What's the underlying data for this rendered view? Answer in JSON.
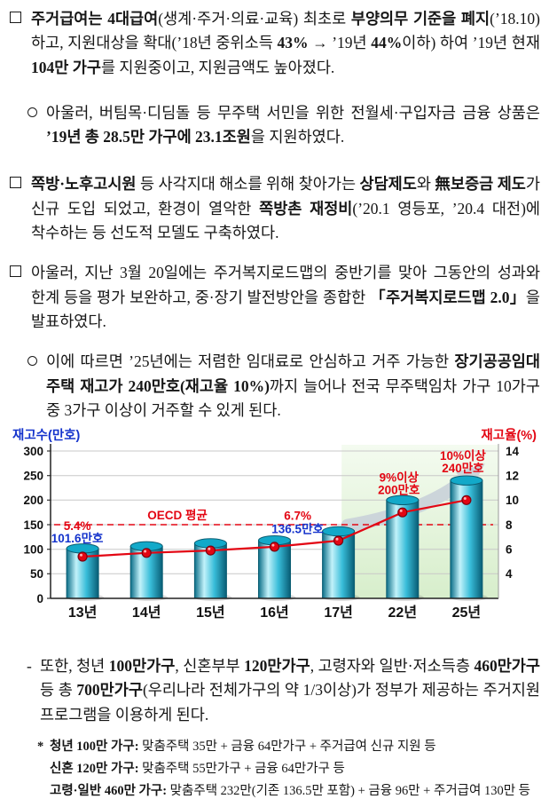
{
  "document": {
    "paragraphs": {
      "p0": {
        "runs": [
          {
            "t": "주거급여는",
            "b": true
          },
          {
            "t": " ",
            "b": false
          },
          {
            "t": "4대급여",
            "b": true
          },
          {
            "t": "(생계·주거·의료·교육) 최초로 ",
            "b": false
          },
          {
            "t": "부양의무 기준을 폐지",
            "b": true
          },
          {
            "t": "(’18.10)하고, 지원대상을 확대(’18년 중위소득 ",
            "b": false
          },
          {
            "t": "43%",
            "b": true
          },
          {
            "t": " → ’19년 ",
            "b": false
          },
          {
            "t": "44%",
            "b": true
          },
          {
            "t": "이하) 하여 ’19년 현재 ",
            "b": false
          },
          {
            "t": "104만 가구",
            "b": true
          },
          {
            "t": "를 지원중이고, 지원금액도 높아졌다.",
            "b": false
          }
        ]
      },
      "p1": {
        "runs": [
          {
            "t": "아울러, 버팀목·디딤돌 등 무주택 서민을 위한 전월세·구입자금 금융 상품은 ",
            "b": false
          },
          {
            "t": "’19년 총 28.5만 가구에 23.1조원",
            "b": true
          },
          {
            "t": "을 지원하였다.",
            "b": false
          }
        ]
      },
      "p2": {
        "runs": [
          {
            "t": "쪽방·노후고시원",
            "b": true
          },
          {
            "t": " 등 사각지대 해소를 위해 찾아가는 ",
            "b": false
          },
          {
            "t": "상담제도",
            "b": true
          },
          {
            "t": "와 ",
            "b": false
          },
          {
            "t": "無보증금 제도",
            "b": true
          },
          {
            "t": "가 신규 도입 되었고, 환경이 열악한 ",
            "b": false
          },
          {
            "t": "쪽방촌 재정비",
            "b": true
          },
          {
            "t": "(’20.1 영등포, ’20.4 대전)에 착수하는 등 선도적 모델도 구축하였다.",
            "b": false
          }
        ]
      },
      "p3": {
        "runs": [
          {
            "t": "아울러, 지난 3월 20일에는 주거복지로드맵의 중반기를 맞아 그동안의 성과와 한계 등을 평가 보완하고, 중·장기 발전방안을 종합한 ",
            "b": false
          },
          {
            "t": "「주거복지로드맵 2.0」",
            "b": true
          },
          {
            "t": "을 발표하였다.",
            "b": false
          }
        ]
      },
      "p4": {
        "runs": [
          {
            "t": "이에 따르면 ’25년에는 저렴한 임대료로 안심하고 거주 가능한 ",
            "b": false
          },
          {
            "t": "장기공공임대 주택 재고가 240만호(재고율 10%)",
            "b": true
          },
          {
            "t": "까지 늘어나 전국 무주택임차 가구 10가구 중 3가구 이상이 거주할 수 있게 된다.",
            "b": false
          }
        ]
      },
      "p5": {
        "bullet": "-",
        "runs": [
          {
            "t": "또한, 청년 ",
            "b": false
          },
          {
            "t": "100만가구",
            "b": true
          },
          {
            "t": ", 신혼부부 ",
            "b": false
          },
          {
            "t": "120만가구",
            "b": true
          },
          {
            "t": ", 고령자와 일반·저소득층 ",
            "b": false
          },
          {
            "t": "460만가구",
            "b": true
          },
          {
            "t": " 등 총 ",
            "b": false
          },
          {
            "t": "700만가구",
            "b": true
          },
          {
            "t": "(우리나라 전체가구의 약 1/3이상)가 정부가 제공하는 주거지원 프로그램을 이용하게 된다.",
            "b": false
          }
        ]
      }
    },
    "footnotes": {
      "marker": "*",
      "items": [
        {
          "runs": [
            {
              "t": "청년 100만 가구:",
              "b": true
            },
            {
              "t": " 맞춤주택 35만 + 금융 64만가구 + 주거급여 신규 지원 등",
              "b": false
            }
          ]
        },
        {
          "runs": [
            {
              "t": "신혼 120만 가구:",
              "b": true
            },
            {
              "t": " 맞춤주택 55만가구 + 금융 64만가구 등",
              "b": false
            }
          ]
        },
        {
          "runs": [
            {
              "t": "고령·일반 460만 가구:",
              "b": true
            },
            {
              "t": " 맞춤주택 232만(기존 136.5만 포함) + 금융 96만 + 주거급여 130만 등",
              "b": false
            }
          ]
        }
      ]
    }
  },
  "chart_data": {
    "type": "bar",
    "overlay_line": true,
    "categories": [
      "13년",
      "14년",
      "15년",
      "16년",
      "17년",
      "22년",
      "25년"
    ],
    "series": [
      {
        "name": "재고수(만호)",
        "type": "bar",
        "axis": "left",
        "values": [
          101.6,
          106,
          112,
          118,
          136.5,
          200,
          240
        ]
      },
      {
        "name": "재고율(%)",
        "type": "line",
        "axis": "right",
        "values": [
          5.4,
          5.7,
          5.9,
          6.2,
          6.7,
          9,
          10
        ]
      }
    ],
    "left_axis": {
      "label": "재고수(만호)",
      "min": 0,
      "max": 300,
      "step": 50,
      "color": "#1433cc"
    },
    "right_axis": {
      "label": "재고율(%)",
      "min": 2,
      "max": 14,
      "ticks": [
        4,
        6,
        8,
        10,
        12,
        14
      ],
      "color": "#e30613"
    },
    "reference_line": {
      "label": "OECD 평균",
      "right_value": 8,
      "color": "#e30613"
    },
    "annotations": [
      {
        "index": 0,
        "lines": [
          "5.4%",
          "101.6만호"
        ],
        "line_colors": [
          "#e30613",
          "#1433cc"
        ]
      },
      {
        "index": 4,
        "lines": [
          "6.7%",
          "136.5만호"
        ],
        "line_colors": [
          "#e30613",
          "#1433cc"
        ]
      },
      {
        "index": 5,
        "lines": [
          "9%이상",
          "200만호"
        ],
        "line_colors": [
          "#e30613",
          "#e30613"
        ]
      },
      {
        "index": 6,
        "lines": [
          "10%이상",
          "240만호"
        ],
        "line_colors": [
          "#e30613",
          "#e30613"
        ]
      }
    ],
    "highlight_region": {
      "from_index": 5,
      "to_index": 6,
      "color": "#d7eecb"
    },
    "grid": true,
    "legend": "none",
    "colors": {
      "bar_body_light": "#c2f2fa",
      "bar_body_dark": "#085d75",
      "bar_top": "#12a9c9",
      "bar_outline": "#0b5d72",
      "trend_line": "#e30613",
      "arrow": "#ccd5da"
    }
  }
}
